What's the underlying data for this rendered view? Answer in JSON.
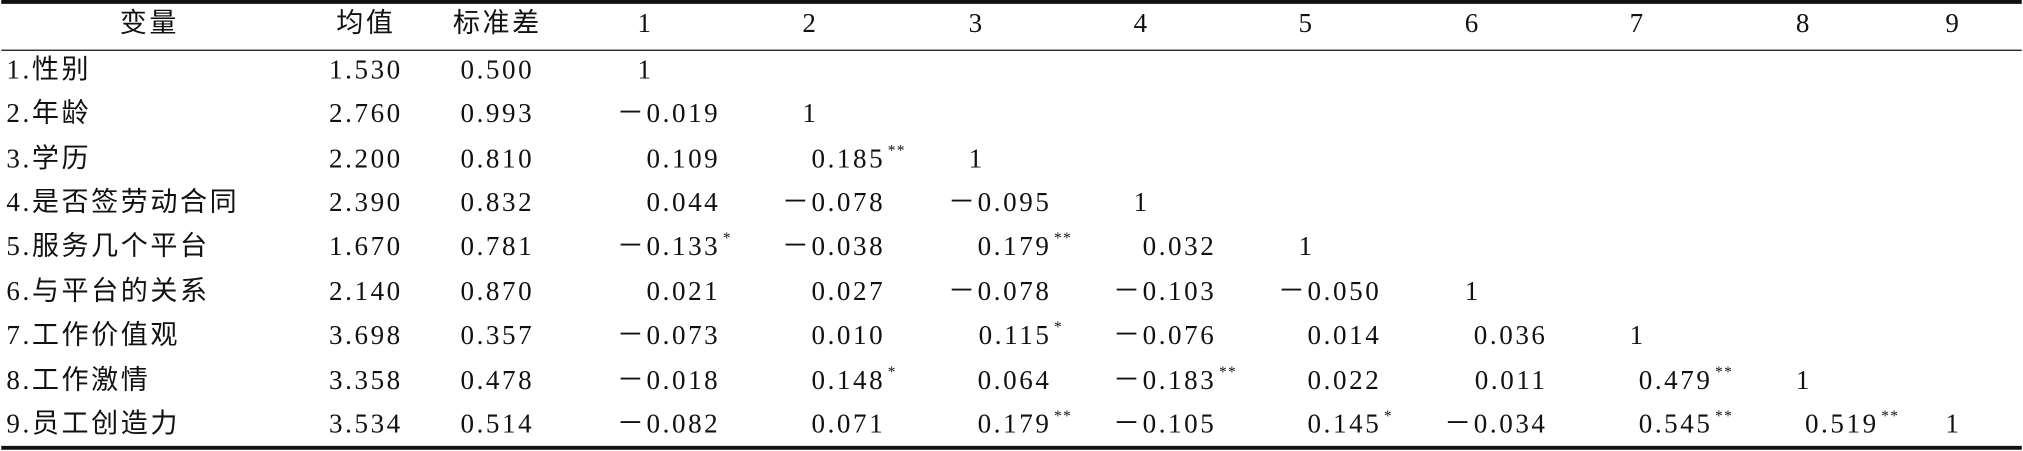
{
  "table": {
    "header": [
      "变量",
      "均值",
      "标准差",
      "1",
      "2",
      "3",
      "4",
      "5",
      "6",
      "7",
      "8",
      "9"
    ],
    "rows": [
      [
        "1.性别",
        "1.530",
        "0.500",
        "1"
      ],
      [
        "2.年龄",
        "2.760",
        "0.993",
        "－0.019",
        "1"
      ],
      [
        "3.学历",
        "2.200",
        "0.810",
        "0.109",
        {
          "text": "0.185",
          "sig": "**"
        },
        "1"
      ],
      [
        "4.是否签劳动合同",
        "2.390",
        "0.832",
        "0.044",
        "－0.078",
        "－0.095",
        "1"
      ],
      [
        "5.服务几个平台",
        "1.670",
        "0.781",
        {
          "text": "－0.133",
          "sig": "*"
        },
        "－0.038",
        {
          "text": "0.179",
          "sig": "**"
        },
        "0.032",
        "1"
      ],
      [
        "6.与平台的关系",
        "2.140",
        "0.870",
        "0.021",
        "0.027",
        "－0.078",
        "－0.103",
        "－0.050",
        "1"
      ],
      [
        "7.工作价值观",
        "3.698",
        "0.357",
        "－0.073",
        "0.010",
        {
          "text": "0.115",
          "sig": "*"
        },
        "－0.076",
        "0.014",
        "0.036",
        "1"
      ],
      [
        "8.工作激情",
        "3.358",
        "0.478",
        "－0.018",
        {
          "text": "0.148",
          "sig": "*"
        },
        "0.064",
        {
          "text": "－0.183",
          "sig": "**"
        },
        "0.022",
        "0.011",
        {
          "text": "0.479",
          "sig": "**"
        },
        "1"
      ],
      [
        "9.员工创造力",
        "3.534",
        "0.514",
        "－0.082",
        "0.071",
        {
          "text": "0.179",
          "sig": "**"
        },
        "－0.105",
        {
          "text": "0.145",
          "sig": "*"
        },
        "－0.034",
        {
          "text": "0.545",
          "sig": "**"
        },
        {
          "text": "0.519",
          "sig": "**"
        },
        "1"
      ]
    ]
  }
}
